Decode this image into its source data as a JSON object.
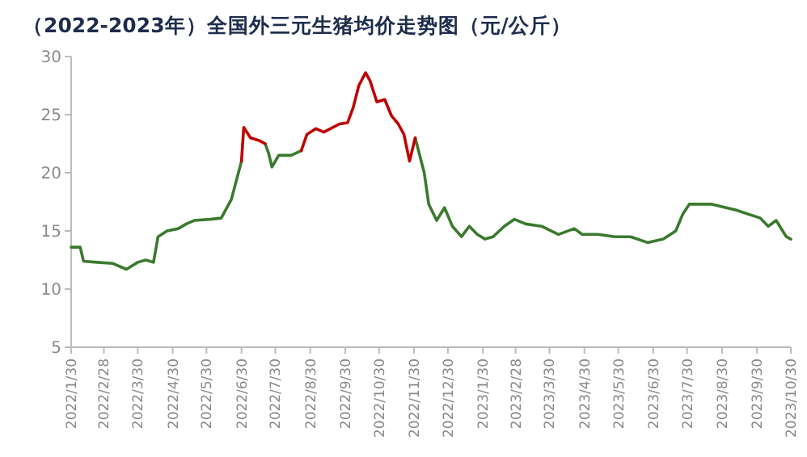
{
  "chart_data": {
    "type": "line",
    "title": "（2022-2023年）全国外三元生猪均价走势图（元/公斤）",
    "x": [
      "2022-01-30",
      "2022-02-07",
      "2022-02-10",
      "2022-02-22",
      "2022-03-08",
      "2022-03-20",
      "2022-03-30",
      "2022-04-06",
      "2022-04-13",
      "2022-04-17",
      "2022-04-25",
      "2022-05-05",
      "2022-05-12",
      "2022-05-19",
      "2022-06-02",
      "2022-06-12",
      "2022-06-21",
      "2022-06-30",
      "2022-07-02",
      "2022-07-08",
      "2022-07-15",
      "2022-07-21",
      "2022-07-24",
      "2022-07-27",
      "2022-08-02",
      "2022-08-13",
      "2022-08-22",
      "2022-08-27",
      "2022-09-04",
      "2022-09-11",
      "2022-09-25",
      "2022-10-02",
      "2022-10-07",
      "2022-10-12",
      "2022-10-18",
      "2022-10-22",
      "2022-10-28",
      "2022-11-04",
      "2022-11-10",
      "2022-11-16",
      "2022-11-21",
      "2022-11-26",
      "2022-12-01",
      "2022-12-09",
      "2022-12-13",
      "2022-12-20",
      "2022-12-27",
      "2023-01-03",
      "2023-01-11",
      "2023-01-18",
      "2023-01-25",
      "2023-02-01",
      "2023-02-08",
      "2023-02-18",
      "2023-02-27",
      "2023-03-09",
      "2023-03-23",
      "2023-04-07",
      "2023-04-21",
      "2023-04-28",
      "2023-05-12",
      "2023-05-27",
      "2023-06-10",
      "2023-06-25",
      "2023-07-09",
      "2023-07-20",
      "2023-07-26",
      "2023-08-01",
      "2023-08-21",
      "2023-09-11",
      "2023-10-03",
      "2023-10-10",
      "2023-10-17",
      "2023-10-26",
      "2023-10-30"
    ],
    "series": [
      {
        "color": "#3b7a2e",
        "values": [
          13.6,
          13.6,
          12.4,
          12.3,
          12.2,
          11.7,
          12.3,
          12.5,
          12.3,
          14.5,
          15.0,
          15.2,
          15.6,
          15.9,
          16.0,
          16.1,
          17.7,
          21.0,
          null,
          null,
          null,
          22.5,
          21.7,
          20.5,
          21.5,
          21.5,
          21.9,
          null,
          null,
          null,
          null,
          null,
          null,
          null,
          null,
          null,
          null,
          null,
          null,
          null,
          null,
          null,
          23.0,
          20.0,
          17.3,
          15.9,
          17.0,
          15.4,
          14.5,
          15.4,
          14.7,
          14.3,
          14.5,
          15.4,
          16.0,
          15.6,
          15.4,
          14.7,
          15.2,
          14.7,
          14.7,
          14.5,
          14.5,
          14.0,
          14.3,
          15.0,
          16.4,
          17.3,
          17.3,
          16.8,
          16.1,
          15.4,
          15.9,
          14.5,
          14.3
        ]
      },
      {
        "color": "#c00000",
        "values": [
          null,
          null,
          null,
          null,
          null,
          null,
          null,
          null,
          null,
          null,
          null,
          null,
          null,
          null,
          null,
          null,
          null,
          21.0,
          23.9,
          23.0,
          22.8,
          22.5,
          null,
          null,
          null,
          null,
          21.9,
          23.3,
          23.8,
          23.5,
          24.2,
          24.3,
          25.6,
          27.5,
          28.6,
          27.9,
          26.1,
          26.3,
          24.9,
          24.2,
          23.3,
          21.0,
          23.0,
          null,
          null,
          null,
          null,
          null,
          null,
          null,
          null,
          null,
          null,
          null,
          null,
          null,
          null,
          null,
          null,
          null,
          null,
          null,
          null,
          null,
          null,
          null,
          null,
          null,
          null,
          null,
          null,
          null,
          null,
          null,
          null
        ]
      }
    ],
    "xlim": [
      "2022-01-30",
      "2023-10-30"
    ],
    "xticks": [
      {
        "value": "2022-01-30",
        "label": "2022/1/30"
      },
      {
        "value": "2022-02-28",
        "label": "2022/2/28"
      },
      {
        "value": "2022-03-30",
        "label": "2022/3/30"
      },
      {
        "value": "2022-04-30",
        "label": "2022/4/30"
      },
      {
        "value": "2022-05-30",
        "label": "2022/5/30"
      },
      {
        "value": "2022-06-30",
        "label": "2022/6/30"
      },
      {
        "value": "2022-07-30",
        "label": "2022/7/30"
      },
      {
        "value": "2022-08-30",
        "label": "2022/8/30"
      },
      {
        "value": "2022-09-30",
        "label": "2022/9/30"
      },
      {
        "value": "2022-10-30",
        "label": "2022/10/30"
      },
      {
        "value": "2022-11-30",
        "label": "2022/11/30"
      },
      {
        "value": "2022-12-30",
        "label": "2022/12/30"
      },
      {
        "value": "2023-01-30",
        "label": "2023/1/30"
      },
      {
        "value": "2023-02-28",
        "label": "2023/2/28"
      },
      {
        "value": "2023-03-30",
        "label": "2023/3/30"
      },
      {
        "value": "2023-04-30",
        "label": "2023/4/30"
      },
      {
        "value": "2023-05-30",
        "label": "2023/5/30"
      },
      {
        "value": "2023-06-30",
        "label": "2023/6/30"
      },
      {
        "value": "2023-07-30",
        "label": "2023/7/30"
      },
      {
        "value": "2023-08-30",
        "label": "2023/8/30"
      },
      {
        "value": "2023-09-30",
        "label": "2023/9/30"
      },
      {
        "value": "2023-10-30",
        "label": "2023/10/30"
      }
    ],
    "ylim": [
      5,
      30
    ],
    "yticks": [
      5,
      10,
      15,
      20,
      25,
      30
    ],
    "line_style": "solid"
  }
}
